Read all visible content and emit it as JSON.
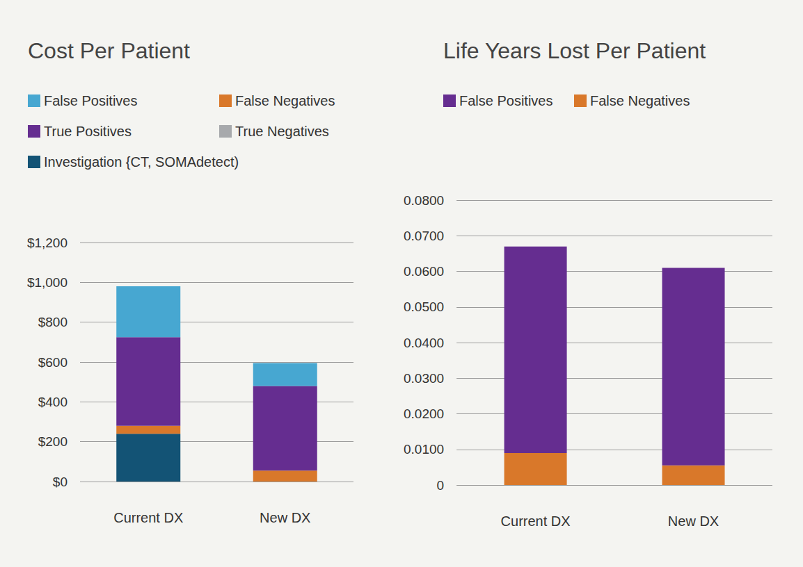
{
  "chart_data": [
    {
      "type": "bar",
      "title": "Cost Per Patient",
      "stacked": true,
      "grid": true,
      "legend": "top-left",
      "categories": [
        "Current DX",
        "New DX"
      ],
      "series": [
        {
          "name": "Investigation {CT, SOMAdetect)",
          "color": "#135375",
          "values": [
            240,
            0
          ]
        },
        {
          "name": "False Negatives",
          "color": "#d9782a",
          "values": [
            40,
            55
          ]
        },
        {
          "name": "True Positives",
          "color": "#652d90",
          "values": [
            445,
            425
          ]
        },
        {
          "name": "True Negatives",
          "color": "#a7a9ac",
          "values": [
            0,
            0
          ]
        },
        {
          "name": "False Positives",
          "color": "#47a7d1",
          "values": [
            255,
            115
          ]
        }
      ],
      "ylim": [
        0,
        1200
      ],
      "yticks": [
        {
          "value": 0,
          "label": "$0"
        },
        {
          "value": 200,
          "label": "$200"
        },
        {
          "value": 400,
          "label": "$400"
        },
        {
          "value": 600,
          "label": "$600"
        },
        {
          "value": 800,
          "label": "$800"
        },
        {
          "value": 1000,
          "label": "$1,000"
        },
        {
          "value": 1200,
          "label": "$1,200"
        }
      ]
    },
    {
      "type": "bar",
      "title": "Life Years Lost Per Patient",
      "stacked": true,
      "grid": true,
      "legend": "top-left",
      "categories": [
        "Current DX",
        "New DX"
      ],
      "series": [
        {
          "name": "False Negatives",
          "color": "#d9782a",
          "values": [
            0.009,
            0.0055
          ]
        },
        {
          "name": "False Positives",
          "color": "#652d90",
          "values": [
            0.058,
            0.0555
          ]
        }
      ],
      "ylim": [
        0,
        0.08
      ],
      "yticks": [
        0,
        {
          "value": 0.01,
          "label": "0.0100"
        },
        {
          "value": 0.02,
          "label": "0.0200"
        },
        {
          "value": 0.03,
          "label": "0.0300"
        },
        {
          "value": 0.04,
          "label": "0.0400"
        },
        {
          "value": 0.05,
          "label": "0.0500"
        },
        {
          "value": 0.06,
          "label": "0.0600"
        },
        {
          "value": 0.07,
          "label": "0.0700"
        },
        {
          "value": 0.08,
          "label": "0.0800"
        }
      ]
    }
  ]
}
